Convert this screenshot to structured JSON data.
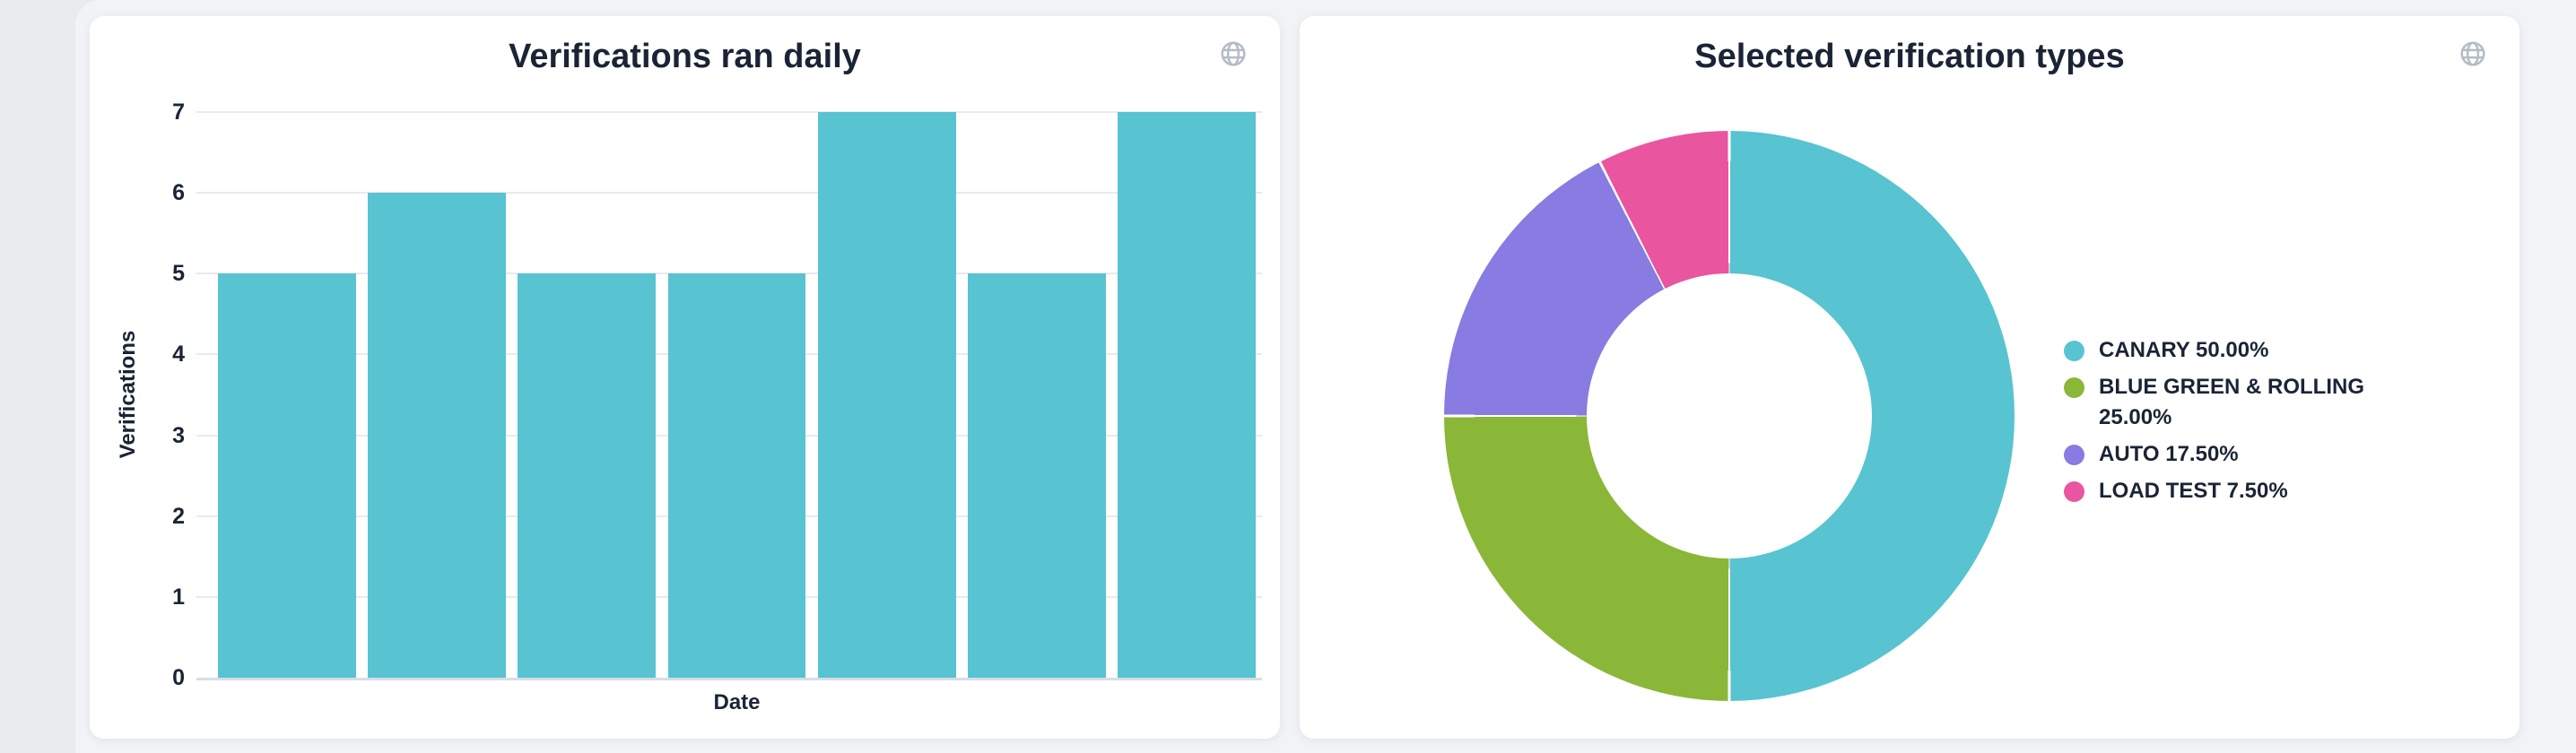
{
  "cards": [
    {
      "title": "Verifications ran daily",
      "corner_icon": "globe-icon"
    },
    {
      "title": "Selected verification types",
      "corner_icon": "globe-icon"
    }
  ],
  "chart_data": [
    {
      "type": "bar",
      "title": "Verifications ran daily",
      "xlabel": "Date",
      "ylabel": "Verifications",
      "x_tick_labels": [],
      "values": [
        5,
        6,
        5,
        5,
        7,
        5,
        7
      ],
      "yticks": [
        0,
        1,
        2,
        3,
        4,
        5,
        6,
        7
      ],
      "ylim": [
        0,
        7
      ],
      "grid": true,
      "legend_position": "none",
      "bar_color": "#58C3D1"
    },
    {
      "type": "pie",
      "title": "Selected verification types",
      "donut_hole_ratio": 0.5,
      "start_angle": "top",
      "direction": "clockwise",
      "legend_position": "right",
      "slices": [
        {
          "label": "CANARY",
          "pct_label": "50.00%",
          "value": 50,
          "color": "#58C3D1"
        },
        {
          "label": "BLUE GREEN & ROLLING",
          "pct_label": "25.00%",
          "value": 25,
          "color": "#8AB737"
        },
        {
          "label": "AUTO",
          "pct_label": "17.50%",
          "value": 17.5,
          "color": "#887BE2"
        },
        {
          "label": "LOAD TEST",
          "pct_label": "7.50%",
          "value": 7.5,
          "color": "#EA55A0"
        }
      ]
    }
  ],
  "colors": {
    "page_background": "#e9ebee",
    "panel_background": "#f1f3f6",
    "card_background": "#ffffff",
    "text": "#1a2435",
    "gridline": "#e8eaee",
    "axis_baseline": "#d8dde6",
    "globe_icon": "#b5bcc6"
  }
}
